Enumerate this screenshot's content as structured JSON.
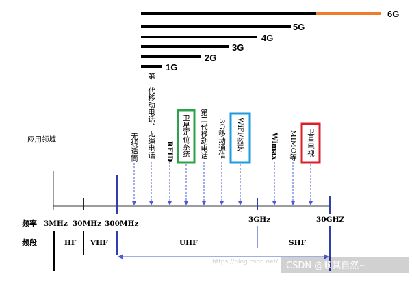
{
  "generations": [
    {
      "label": "1G",
      "color": "#000000"
    },
    {
      "label": "2G",
      "color": "#000000"
    },
    {
      "label": "3G",
      "color": "#000000"
    },
    {
      "label": "4G",
      "color": "#000000"
    },
    {
      "label": "5G",
      "color": "#000000"
    },
    {
      "label": "6G",
      "color": "#f07b2c"
    }
  ],
  "application_heading": "应用领域",
  "applications": [
    {
      "text": "无线话筒",
      "box": ""
    },
    {
      "text": "第一代移动电话、无绳电话",
      "box": ""
    },
    {
      "text": "RFID",
      "box": ""
    },
    {
      "text": "卫星定位系统",
      "box": "#2ca34a"
    },
    {
      "text": "第二代移动电话",
      "box": ""
    },
    {
      "text": "3G移动通信",
      "box": ""
    },
    {
      "text": "WiFi/蓝牙",
      "box": "#1e9be0"
    },
    {
      "text": "Wimax",
      "box": ""
    },
    {
      "text": "MIMO等",
      "box": ""
    },
    {
      "text": "卫星电视",
      "box": "#d8212a"
    }
  ],
  "frequency_heading": "频率",
  "frequencies": [
    "3MHz",
    "30MHz",
    "300MHz",
    "3GHz",
    "30GHZ"
  ],
  "band_heading": "频段",
  "bands": [
    "HF",
    "VHF",
    "UHF",
    "SHF"
  ],
  "colors": {
    "axis": "#3a3a3a",
    "band_line": "#2f3fae",
    "arrow": "#4a5ad8"
  },
  "watermark": {
    "faint": "https://blog.csdn.net/",
    "text": "CSDN @顺其自然~"
  }
}
